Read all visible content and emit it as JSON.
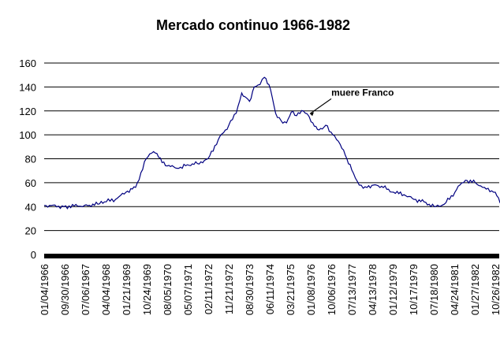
{
  "chart_data": {
    "type": "line",
    "title": "Mercado continuo 1966-1982",
    "xlabel": "",
    "ylabel": "",
    "ylim": [
      0,
      160
    ],
    "yticks": [
      0,
      20,
      40,
      60,
      80,
      100,
      120,
      140,
      160
    ],
    "grid": "horizontal",
    "legend": "none",
    "line_color": "#000080",
    "x_tick_labels": [
      "01/04/1966",
      "09/30/1966",
      "07/06/1967",
      "04/04/1968",
      "01/21/1969",
      "10/24/1969",
      "08/05/1970",
      "05/07/1971",
      "02/11/1972",
      "11/21/1972",
      "08/30/1973",
      "06/11/1974",
      "03/21/1975",
      "01/08/1976",
      "10/06/1976",
      "07/13/1977",
      "04/13/1978",
      "01/12/1979",
      "10/17/1979",
      "07/18/1980",
      "04/24/1981",
      "01/27/1982",
      "10/26/1982"
    ],
    "series": [
      {
        "x": [
          "01/04/1966",
          "09/30/1966",
          "07/06/1967",
          "01/05/1968",
          "04/04/1968",
          "09/01/1968",
          "01/21/1969",
          "06/01/1969",
          "10/24/1969",
          "12/10/1969",
          "02/01/1970",
          "08/05/1970",
          "01/10/1971",
          "05/07/1971",
          "09/20/1971",
          "02/11/1972",
          "07/01/1972",
          "11/21/1972",
          "03/01/1973",
          "05/15/1973",
          "08/30/1973",
          "11/01/1973",
          "01/20/1974",
          "03/20/1974",
          "06/11/1974",
          "08/20/1974",
          "11/01/1974",
          "01/15/1975",
          "03/21/1975",
          "06/01/1975",
          "09/01/1975",
          "11/20/1975",
          "01/08/1976",
          "04/01/1976",
          "07/01/1976",
          "10/06/1976",
          "01/15/1977",
          "04/15/1977",
          "07/13/1977",
          "10/01/1977",
          "01/15/1978",
          "04/13/1978",
          "08/01/1978",
          "01/12/1979",
          "06/01/1979",
          "10/17/1979",
          "03/01/1980",
          "07/18/1980",
          "12/01/1980",
          "04/24/1981",
          "07/01/1981",
          "09/15/1981",
          "01/27/1982",
          "06/01/1982",
          "10/26/1982",
          "12/31/1982"
        ],
        "values": [
          41,
          40,
          41,
          42,
          44,
          46,
          52,
          56,
          80,
          84,
          86,
          74,
          72,
          75,
          76,
          80,
          96,
          108,
          118,
          135,
          128,
          140,
          142,
          148,
          138,
          118,
          112,
          110,
          119,
          116,
          120,
          115,
          110,
          104,
          108,
          100,
          92,
          80,
          68,
          58,
          56,
          58,
          57,
          52,
          50,
          46,
          44,
          40,
          42,
          52,
          58,
          62,
          60,
          56,
          52,
          43
        ]
      }
    ],
    "annotations": [
      {
        "text": "muere Franco",
        "x": "11/20/1975",
        "y": 117
      }
    ]
  }
}
